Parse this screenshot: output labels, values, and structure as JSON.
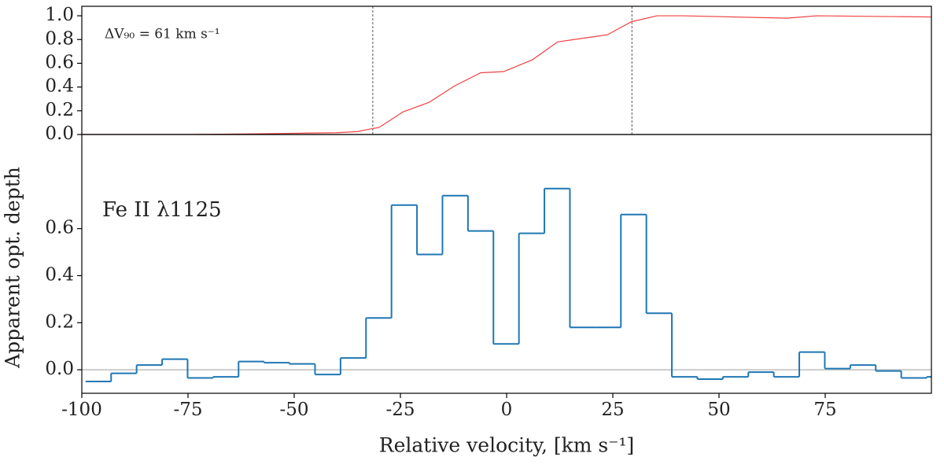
{
  "chart_data": [
    {
      "type": "line",
      "annotation": "ΔV₉₀ = 61 km s⁻¹",
      "x": [
        -100,
        -85,
        -75,
        -60,
        -50,
        -40,
        -35,
        -33,
        -30,
        -24.4,
        -18.3,
        -12.2,
        -6.1,
        -0.7,
        6.1,
        12,
        17.8,
        23.7,
        29.4,
        35.4,
        41.5,
        66,
        73,
        100
      ],
      "series": [
        {
          "color": "#f04040",
          "values": [
            0,
            0,
            0,
            0.005,
            0.01,
            0.015,
            0.025,
            0.04,
            0.06,
            0.19,
            0.27,
            0.41,
            0.52,
            0.53,
            0.63,
            0.78,
            0.81,
            0.84,
            0.95,
            1.0,
            1.0,
            0.98,
            1.0,
            0.99
          ]
        }
      ],
      "vlines": [
        -31.5,
        29.5
      ],
      "xlim": [
        -100,
        100
      ],
      "ylim": [
        0,
        1.08
      ],
      "yticks": [
        {
          "value": 0,
          "label": "0.0"
        },
        {
          "value": 0.2,
          "label": "0.2"
        },
        {
          "value": 0.4,
          "label": "0.4"
        },
        {
          "value": 0.6,
          "label": "0.6"
        },
        {
          "value": 0.8,
          "label": "0.8"
        },
        {
          "value": 1.0,
          "label": "1.0"
        }
      ]
    },
    {
      "type": "step",
      "annotation": "Fe II λ1125",
      "x_label": "Relative velocity, [km s⁻¹]",
      "y_label": "Apparent opt. depth",
      "color": "#1f77b4",
      "bins": [
        -99.1,
        -93.1,
        -87.1,
        -81.1,
        -75.1,
        -69.1,
        -63.1,
        -57.1,
        -51.1,
        -45.1,
        -39.1,
        -33.1,
        -27.1,
        -21.1,
        -15.1,
        -9.1,
        -3.1,
        2.9,
        8.9,
        14.9,
        20.9,
        26.9,
        32.9,
        38.9,
        44.9,
        50.9,
        56.9,
        62.9,
        68.9,
        74.9,
        80.9,
        86.9,
        92.9,
        98.9,
        104.9
      ],
      "counts": [
        -0.05,
        -0.015,
        0.02,
        0.045,
        -0.035,
        -0.03,
        0.035,
        0.03,
        0.025,
        -0.02,
        0.05,
        0.22,
        0.7,
        0.49,
        0.74,
        0.59,
        0.11,
        0.58,
        0.77,
        0.18,
        0.18,
        0.66,
        0.24,
        -0.03,
        -0.04,
        -0.03,
        -0.01,
        -0.03,
        0.075,
        0.005,
        0.02,
        -0.005,
        -0.035,
        -0.03
      ],
      "reference_line": 0,
      "xlim": [
        -100,
        100
      ],
      "xticks": [
        -100,
        -75,
        -50,
        -25,
        0,
        25,
        50,
        75
      ],
      "ylim": [
        -0.1,
        1.0
      ],
      "yticks": [
        {
          "value": 0,
          "label": "0.0"
        },
        {
          "value": 0.2,
          "label": "0.2"
        },
        {
          "value": 0.4,
          "label": "0.4"
        },
        {
          "value": 0.6,
          "label": "0.6"
        }
      ]
    }
  ]
}
